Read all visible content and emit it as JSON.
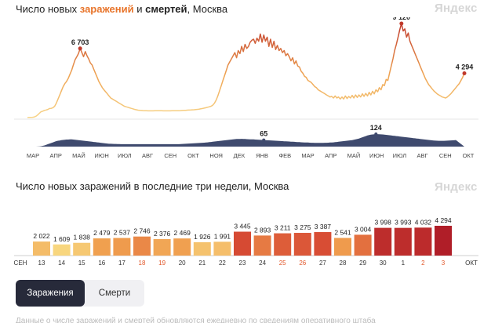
{
  "header": {
    "title_prefix": "Число новых ",
    "title_cases": "заражений",
    "title_mid": " и ",
    "title_deaths": "смертей",
    "title_suffix": ", Москва",
    "brand": "Яндекс"
  },
  "header2": {
    "title": "Число новых заражений в последние три недели, Москва",
    "brand": "Яндекс"
  },
  "tabs": {
    "cases": "Заражения",
    "deaths": "Смерти",
    "active": "cases"
  },
  "footer_text": "Данные о числе заражений и смертей обновляются ежедневно по сведениям оперативного штаба",
  "colors": {
    "cases_low": "#f5c26b",
    "cases_high": "#c0392b",
    "deaths": "#3f4a6e",
    "weekend": "#e2582b",
    "marker": "#c0392b"
  },
  "chart_data": [
    {
      "type": "area",
      "title": "Число новых заражений и смертей, Москва",
      "series": [
        {
          "name": "заражений",
          "values": [
            10,
            12,
            14,
            30,
            60,
            130,
            260,
            420,
            560,
            620,
            700,
            740,
            790,
            880,
            900,
            960,
            1100,
            1400,
            1800,
            2200,
            2600,
            3000,
            3300,
            3500,
            3800,
            4200,
            4600,
            5100,
            5600,
            5900,
            6200,
            6703,
            6300,
            5900,
            6400,
            6000,
            5700,
            5300,
            5100,
            4700,
            4300,
            3900,
            3500,
            3200,
            2900,
            2700,
            2500,
            2300,
            2100,
            1900,
            1800,
            1700,
            1600,
            1500,
            1400,
            1300,
            1200,
            1100,
            1050,
            1000,
            950,
            900,
            850,
            800,
            760,
            720,
            700,
            690,
            680,
            670,
            660,
            650,
            650,
            650,
            650,
            660,
            660,
            660,
            660,
            660,
            650,
            650,
            650,
            650,
            650,
            660,
            660,
            660,
            660,
            670,
            680,
            690,
            700,
            710,
            720,
            730,
            740,
            750,
            760,
            780,
            800,
            820,
            850,
            880,
            920,
            960,
            1000,
            1050,
            1100,
            1200,
            1400,
            1700,
            2100,
            2600,
            3100,
            3600,
            4100,
            4600,
            5100,
            5400,
            5700,
            6000,
            6300,
            5800,
            6500,
            6200,
            6900,
            6400,
            7100,
            6700,
            6900,
            7300,
            7500,
            7600,
            7200,
            7700,
            7400,
            8100,
            7300,
            8000,
            7400,
            7800,
            6900,
            7600,
            6800,
            7400,
            6600,
            7000,
            6500,
            6700,
            6300,
            6500,
            6000,
            6200,
            5900,
            5500,
            5800,
            5200,
            5500,
            5000,
            4900,
            4500,
            4300,
            4000,
            3900,
            3600,
            3500,
            3400,
            3200,
            3000,
            2900,
            2700,
            2600,
            2500,
            2400,
            2300,
            2200,
            2100,
            2000,
            2050,
            1900,
            2100,
            1900,
            2000,
            1800,
            2000,
            1800,
            2100,
            1850,
            2050,
            1900,
            2150,
            1900,
            2200,
            1950,
            2200,
            2000,
            2300,
            2050,
            2350,
            2100,
            2450,
            2200,
            2550,
            2300,
            2700,
            2500,
            2900,
            2700,
            3200,
            3100,
            3700,
            3600,
            4300,
            5000,
            5700,
            6500,
            7100,
            7800,
            8500,
            9120,
            8400,
            8600,
            7800,
            8200,
            7400,
            7000,
            6600,
            6200,
            5800,
            5400,
            5000,
            4600,
            4200,
            3800,
            3500,
            3200,
            3000,
            2800,
            2600,
            2450,
            2300,
            2200,
            2100,
            2000,
            1950,
            1900,
            2000,
            2150,
            2300,
            2500,
            2700,
            2900,
            3100,
            3300,
            3600,
            3900,
            4294
          ]
        },
        {
          "name": "смертей",
          "values": [
            0,
            0,
            0,
            0,
            0,
            0,
            1,
            2,
            4,
            8,
            12,
            18,
            24,
            30,
            36,
            42,
            48,
            54,
            58,
            60,
            64,
            66,
            68,
            70,
            70,
            72,
            72,
            70,
            68,
            66,
            64,
            62,
            60,
            58,
            56,
            54,
            52,
            50,
            48,
            46,
            44,
            42,
            40,
            38,
            36,
            34,
            32,
            30,
            28,
            28,
            27,
            26,
            26,
            25,
            25,
            24,
            24,
            24,
            24,
            24,
            24,
            24,
            24,
            24,
            24,
            24,
            24,
            24,
            24,
            24,
            24,
            24,
            24,
            24,
            24,
            24,
            24,
            24,
            24,
            24,
            24,
            24,
            24,
            24,
            24,
            24,
            24,
            24,
            24,
            24,
            25,
            26,
            27,
            28,
            29,
            30,
            31,
            32,
            33,
            34,
            35,
            36,
            37,
            38,
            39,
            40,
            42,
            44,
            46,
            48,
            50,
            52,
            54,
            56,
            58,
            60,
            62,
            64,
            66,
            68,
            70,
            72,
            74,
            75,
            76,
            76,
            77,
            76,
            75,
            74,
            73,
            72,
            72,
            71,
            70,
            69,
            68,
            67,
            66,
            65,
            64,
            63,
            62,
            61,
            60,
            59,
            58,
            57,
            56,
            55,
            54,
            53,
            52,
            51,
            50,
            49,
            48,
            47,
            46,
            45,
            44,
            43,
            42,
            41,
            40,
            40,
            39,
            38,
            38,
            37,
            37,
            37,
            37,
            37,
            37,
            38,
            38,
            39,
            40,
            41,
            42,
            44,
            46,
            48,
            50,
            52,
            54,
            56,
            58,
            60,
            62,
            64,
            68,
            72,
            76,
            80,
            86,
            92,
            98,
            104,
            110,
            114,
            118,
            120,
            122,
            124,
            123,
            122,
            121,
            120,
            118,
            116,
            114,
            112,
            110,
            108,
            106,
            104,
            102,
            100,
            98,
            96,
            94,
            92,
            90,
            88,
            86,
            84,
            82,
            80,
            78,
            76,
            74,
            72,
            70,
            68,
            66,
            64,
            62,
            60,
            59,
            58,
            57,
            57,
            57,
            57,
            58,
            59,
            60,
            61,
            62,
            63,
            65
          ]
        }
      ],
      "annotations": [
        {
          "label": "6 703",
          "series": "заражений",
          "value": 6703
        },
        {
          "label": "9 120",
          "series": "заражений",
          "value": 9120
        },
        {
          "label": "4 294",
          "series": "заражений",
          "value": 4294
        },
        {
          "label": "124",
          "series": "смертей",
          "value": 124
        },
        {
          "label": "65",
          "series": "смертей",
          "value": 65
        }
      ],
      "x_ticks": [
        "МАР",
        "АПР",
        "МАЙ",
        "ИЮН",
        "ИЮЛ",
        "АВГ",
        "СЕН",
        "ОКТ",
        "НОЯ",
        "ДЕК",
        "ЯНВ",
        "ФЕВ",
        "МАР",
        "АПР",
        "МАЙ",
        "ИЮН",
        "ИЮЛ",
        "АВГ",
        "СЕН",
        "ОКТ"
      ],
      "grid": false
    },
    {
      "type": "bar",
      "title": "Число новых заражений в последние три недели, Москва",
      "month_start": "СЕН",
      "month_end": "ОКТ",
      "categories": [
        "13",
        "14",
        "15",
        "16",
        "17",
        "18",
        "19",
        "20",
        "21",
        "22",
        "23",
        "24",
        "25",
        "26",
        "27",
        "28",
        "29",
        "30",
        "1",
        "2",
        "3"
      ],
      "weekend": [
        false,
        false,
        false,
        false,
        false,
        true,
        true,
        false,
        false,
        false,
        false,
        false,
        true,
        true,
        false,
        false,
        false,
        false,
        false,
        true,
        true
      ],
      "values": [
        2022,
        1609,
        1838,
        2479,
        2537,
        2746,
        2376,
        2469,
        1926,
        1991,
        3445,
        2893,
        3211,
        3275,
        3387,
        2541,
        3004,
        3998,
        3993,
        4032,
        4294
      ],
      "value_labels": [
        "2 022",
        "1 609",
        "1 838",
        "2 479",
        "2 537",
        "2 746",
        "2 376",
        "2 469",
        "1 926",
        "1 991",
        "3 445",
        "2 893",
        "3 211",
        "3 275",
        "3 387",
        "2 541",
        "3 004",
        "3 998",
        "3 993",
        "4 032",
        "4 294"
      ],
      "grid": false
    }
  ]
}
